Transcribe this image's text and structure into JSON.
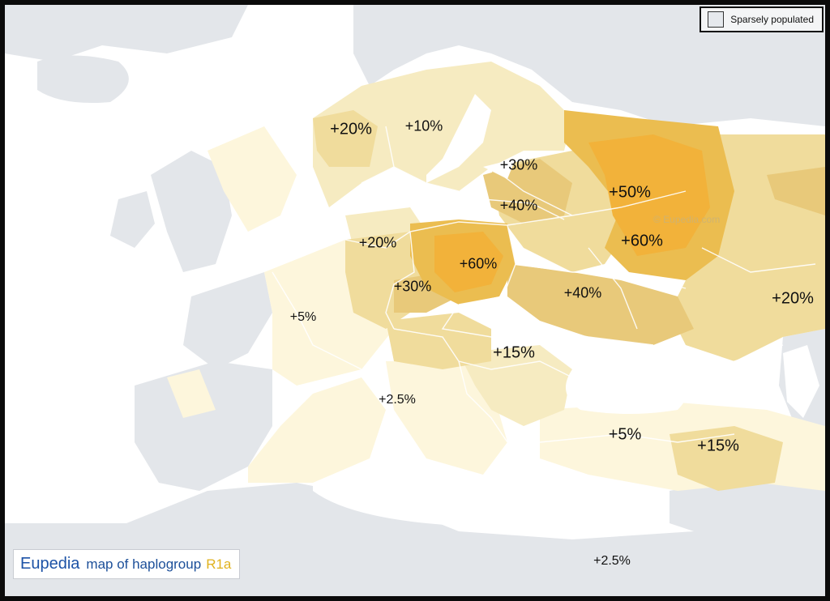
{
  "legend": {
    "label": "Sparsely populated",
    "swatch_color": "#e6e9ed"
  },
  "watermark": "© Eupedia.com",
  "title": {
    "brand": "Eupedia",
    "middle": "map of haplogroup",
    "group": "R1a"
  },
  "colors": {
    "sea": "#ffffff",
    "sparse_land": "#e3e6ea",
    "low": "#fdf6dc",
    "pale": "#f6ebc1",
    "light": "#f0dc9c",
    "medium": "#e8c97a",
    "strong": "#ebbd50",
    "peak": "#f2b23a",
    "brown_tint": "#d9c08a",
    "border": "#ffffff",
    "brand_blue": "#1c52a6",
    "brand_gold": "#e0b21e"
  },
  "frequency_labels": [
    {
      "text": "+20%",
      "region": "Norway"
    },
    {
      "text": "+10%",
      "region": "Sweden"
    },
    {
      "text": "+30%",
      "region": "Baltics"
    },
    {
      "text": "+40%",
      "region": "Belarus / Lithuania"
    },
    {
      "text": "+50%",
      "region": "Russia"
    },
    {
      "text": "+60%",
      "region": "Russia / Ukraine"
    },
    {
      "text": "+20%",
      "region": "Germany"
    },
    {
      "text": "+60%",
      "region": "Poland"
    },
    {
      "text": "+30%",
      "region": "Czech Republic"
    },
    {
      "text": "+40%",
      "region": "Ukraine"
    },
    {
      "text": "+20%",
      "region": "Volga"
    },
    {
      "text": "+5%",
      "region": "France"
    },
    {
      "text": "+15%",
      "region": "Balkans"
    },
    {
      "text": "+2.5%",
      "region": "Italy"
    },
    {
      "text": "+5%",
      "region": "Anatolia"
    },
    {
      "text": "+15%",
      "region": "Caucasus"
    },
    {
      "text": "+2.5%",
      "region": "North Africa"
    }
  ]
}
